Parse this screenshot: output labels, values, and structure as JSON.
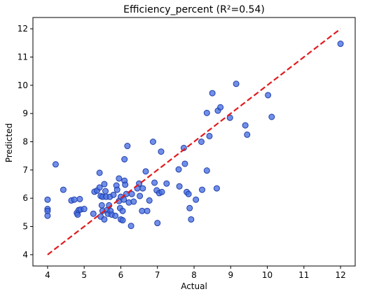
{
  "chart_data": {
    "type": "scatter",
    "title": "Efficiency_percent (R²=0.54)",
    "xlabel": "Actual",
    "ylabel": "Predicted",
    "xlim": [
      3.6,
      12.4
    ],
    "ylim": [
      3.6,
      12.4
    ],
    "xticks": [
      4,
      5,
      6,
      7,
      8,
      9,
      10,
      11,
      12
    ],
    "yticks": [
      4,
      5,
      6,
      7,
      8,
      9,
      10,
      11,
      12
    ],
    "grid": false,
    "point_color": "#4169e1",
    "point_edge_color": "#1f3fa8",
    "reference_line": {
      "color": "#e31a1c",
      "style": "dashed",
      "from": [
        4,
        4
      ],
      "to": [
        12,
        12
      ]
    },
    "points": [
      [
        4.0,
        5.95
      ],
      [
        4.0,
        5.62
      ],
      [
        4.0,
        5.55
      ],
      [
        4.0,
        5.38
      ],
      [
        4.22,
        7.2
      ],
      [
        4.43,
        6.3
      ],
      [
        4.65,
        5.92
      ],
      [
        4.73,
        5.95
      ],
      [
        4.8,
        5.48
      ],
      [
        4.82,
        5.42
      ],
      [
        4.85,
        5.58
      ],
      [
        4.88,
        5.97
      ],
      [
        4.9,
        5.6
      ],
      [
        5.0,
        5.62
      ],
      [
        5.25,
        5.45
      ],
      [
        5.28,
        6.23
      ],
      [
        5.35,
        6.27
      ],
      [
        5.42,
        6.38
      ],
      [
        5.42,
        6.9
      ],
      [
        5.45,
        5.35
      ],
      [
        5.45,
        6.08
      ],
      [
        5.48,
        5.75
      ],
      [
        5.5,
        6.05
      ],
      [
        5.5,
        5.55
      ],
      [
        5.55,
        6.5
      ],
      [
        5.55,
        5.25
      ],
      [
        5.58,
        6.25
      ],
      [
        5.6,
        6.05
      ],
      [
        5.62,
        5.58
      ],
      [
        5.65,
        5.45
      ],
      [
        5.68,
        5.75
      ],
      [
        5.7,
        6.05
      ],
      [
        5.72,
        5.55
      ],
      [
        5.75,
        5.42
      ],
      [
        5.8,
        6.12
      ],
      [
        5.85,
        5.38
      ],
      [
        5.88,
        6.45
      ],
      [
        5.9,
        6.3
      ],
      [
        5.95,
        5.9
      ],
      [
        5.95,
        6.7
      ],
      [
        5.98,
        5.65
      ],
      [
        6.0,
        6.05
      ],
      [
        6.0,
        5.25
      ],
      [
        6.05,
        5.22
      ],
      [
        6.05,
        5.55
      ],
      [
        6.08,
        5.95
      ],
      [
        6.1,
        7.38
      ],
      [
        6.1,
        6.62
      ],
      [
        6.12,
        6.48
      ],
      [
        6.15,
        6.15
      ],
      [
        6.18,
        7.85
      ],
      [
        6.22,
        5.85
      ],
      [
        6.28,
        5.02
      ],
      [
        6.3,
        6.15
      ],
      [
        6.35,
        5.88
      ],
      [
        6.45,
        6.35
      ],
      [
        6.5,
        6.52
      ],
      [
        6.52,
        6.08
      ],
      [
        6.58,
        5.55
      ],
      [
        6.6,
        6.35
      ],
      [
        6.68,
        6.95
      ],
      [
        6.72,
        5.55
      ],
      [
        6.78,
        5.92
      ],
      [
        6.88,
        8.0
      ],
      [
        6.92,
        6.55
      ],
      [
        6.98,
        6.28
      ],
      [
        7.0,
        5.12
      ],
      [
        7.05,
        6.18
      ],
      [
        7.1,
        7.65
      ],
      [
        7.12,
        6.22
      ],
      [
        7.25,
        6.52
      ],
      [
        7.58,
        7.02
      ],
      [
        7.6,
        6.42
      ],
      [
        7.72,
        7.78
      ],
      [
        7.75,
        7.22
      ],
      [
        7.8,
        6.22
      ],
      [
        7.85,
        6.15
      ],
      [
        7.88,
        5.65
      ],
      [
        7.92,
        5.25
      ],
      [
        8.05,
        5.95
      ],
      [
        8.2,
        8.0
      ],
      [
        8.22,
        6.3
      ],
      [
        8.35,
        6.98
      ],
      [
        8.35,
        9.02
      ],
      [
        8.42,
        8.2
      ],
      [
        8.5,
        9.72
      ],
      [
        8.62,
        6.35
      ],
      [
        8.65,
        9.1
      ],
      [
        8.72,
        9.22
      ],
      [
        8.98,
        8.85
      ],
      [
        9.15,
        10.05
      ],
      [
        9.4,
        8.58
      ],
      [
        9.45,
        8.25
      ],
      [
        10.02,
        9.65
      ],
      [
        10.12,
        8.88
      ],
      [
        12.0,
        11.47
      ]
    ]
  }
}
